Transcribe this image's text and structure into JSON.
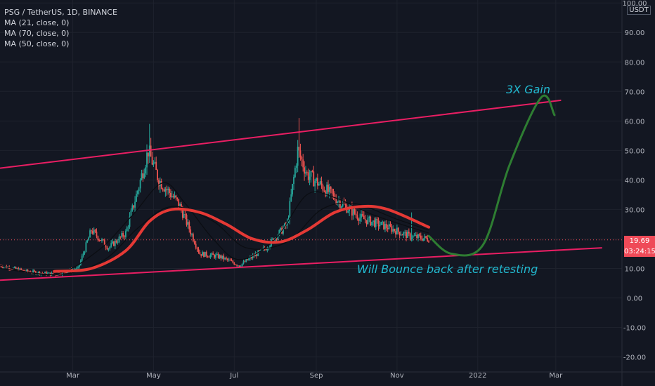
{
  "header": {
    "symbol": "PSG / TetherUS, 1D, BINANCE"
  },
  "indicators": [
    "MA (21, close, 0)",
    "MA (70, close, 0)",
    "MA (50, close, 0)"
  ],
  "axis_unit": "USDT",
  "last_price": {
    "value": "19.69",
    "countdown": "03:24:15"
  },
  "annotations": {
    "gain": "3X Gain",
    "bounce": "Will Bounce back after retesting"
  },
  "colors": {
    "background": "#131722",
    "channel": "#e91e63",
    "ma_red": "#e53935",
    "ma_black": "#0b0d12",
    "up": "#26a69a",
    "down": "#ef5350",
    "arrow": "#2e7d32",
    "annotation": "#22b8cf",
    "price": "#ef4a58"
  },
  "chart_data": {
    "type": "candlestick",
    "title": "PSG / TetherUS, 1D, BINANCE",
    "xlabel": "",
    "ylabel": "",
    "ylim": [
      -22,
      101
    ],
    "y_ticks": [
      "100.00",
      "90.00",
      "80.00",
      "70.00",
      "60.00",
      "50.00",
      "40.00",
      "30.00",
      "20.00",
      "10.00",
      "0.00",
      "-10.00",
      "-20.00"
    ],
    "x_ticks": [
      "Mar",
      "May",
      "Jul",
      "Sep",
      "Nov",
      "2022",
      "Mar"
    ],
    "x_tick_dates": [
      "2021-03-01",
      "2021-05-01",
      "2021-07-01",
      "2021-09-01",
      "2021-11-01",
      "2022-01-01",
      "2022-03-01"
    ],
    "x_range": [
      "2021-01-05",
      "2022-04-20"
    ],
    "price_path": [
      [
        "2021-01-05",
        11
      ],
      [
        "2021-01-25",
        9
      ],
      [
        "2021-02-15",
        8
      ],
      [
        "2021-03-05",
        10
      ],
      [
        "2021-03-15",
        23
      ],
      [
        "2021-03-28",
        17
      ],
      [
        "2021-04-10",
        22
      ],
      [
        "2021-04-20",
        38
      ],
      [
        "2021-04-27",
        50
      ],
      [
        "2021-05-05",
        40
      ],
      [
        "2021-05-20",
        32
      ],
      [
        "2021-06-05",
        15
      ],
      [
        "2021-06-20",
        14
      ],
      [
        "2021-07-05",
        11
      ],
      [
        "2021-07-25",
        17
      ],
      [
        "2021-08-10",
        25
      ],
      [
        "2021-08-18",
        50
      ],
      [
        "2021-08-25",
        42
      ],
      [
        "2021-09-05",
        38
      ],
      [
        "2021-09-20",
        32
      ],
      [
        "2021-10-05",
        27
      ],
      [
        "2021-10-25",
        24
      ],
      [
        "2021-11-10",
        21
      ],
      [
        "2021-11-25",
        20
      ]
    ],
    "spikes": [
      [
        "2021-04-28",
        59
      ],
      [
        "2021-08-19",
        61
      ],
      [
        "2021-11-12",
        29
      ]
    ],
    "series": [
      {
        "values": [
          [
            "2021-02-15",
            9
          ],
          [
            "2021-03-15",
            10
          ],
          [
            "2021-04-10",
            16
          ],
          [
            "2021-04-28",
            26
          ],
          [
            "2021-05-15",
            30
          ],
          [
            "2021-06-05",
            29
          ],
          [
            "2021-06-25",
            25
          ],
          [
            "2021-07-15",
            20
          ],
          [
            "2021-08-05",
            19
          ],
          [
            "2021-08-25",
            23
          ],
          [
            "2021-09-15",
            29
          ],
          [
            "2021-10-05",
            31
          ],
          [
            "2021-10-25",
            30
          ],
          [
            "2021-11-25",
            24
          ]
        ]
      },
      {
        "values": [
          [
            "2021-01-05",
            11
          ],
          [
            "2021-02-15",
            8
          ],
          [
            "2021-03-20",
            16
          ],
          [
            "2021-04-15",
            28
          ],
          [
            "2021-05-08",
            39
          ],
          [
            "2021-05-25",
            32
          ],
          [
            "2021-06-15",
            20
          ],
          [
            "2021-07-05",
            13
          ],
          [
            "2021-08-01",
            20
          ],
          [
            "2021-08-25",
            35
          ],
          [
            "2021-09-15",
            34
          ],
          [
            "2021-10-15",
            28
          ],
          [
            "2021-11-25",
            22
          ]
        ]
      },
      {
        "values": [
          [
            "2021-01-05",
            10
          ],
          [
            "2021-02-20",
            8
          ],
          [
            "2021-03-25",
            13
          ],
          [
            "2021-04-20",
            24
          ],
          [
            "2021-05-15",
            31
          ],
          [
            "2021-06-15",
            26
          ],
          [
            "2021-07-10",
            17
          ],
          [
            "2021-08-10",
            19
          ],
          [
            "2021-09-05",
            30
          ],
          [
            "2021-09-30",
            32
          ],
          [
            "2021-10-30",
            27
          ],
          [
            "2021-11-25",
            23
          ]
        ]
      }
    ],
    "trendlines": [
      {
        "from": [
          "2021-01-05",
          44
        ],
        "to": [
          "2022-03-05",
          67
        ]
      },
      {
        "from": [
          "2021-01-05",
          6
        ],
        "to": [
          "2022-04-05",
          17
        ]
      }
    ],
    "projection": [
      [
        "2021-11-25",
        21
      ],
      [
        "2021-12-12",
        15
      ],
      [
        "2022-01-05",
        18
      ],
      [
        "2022-01-25",
        45
      ],
      [
        "2022-02-18",
        68
      ],
      [
        "2022-02-28",
        62
      ]
    ]
  }
}
